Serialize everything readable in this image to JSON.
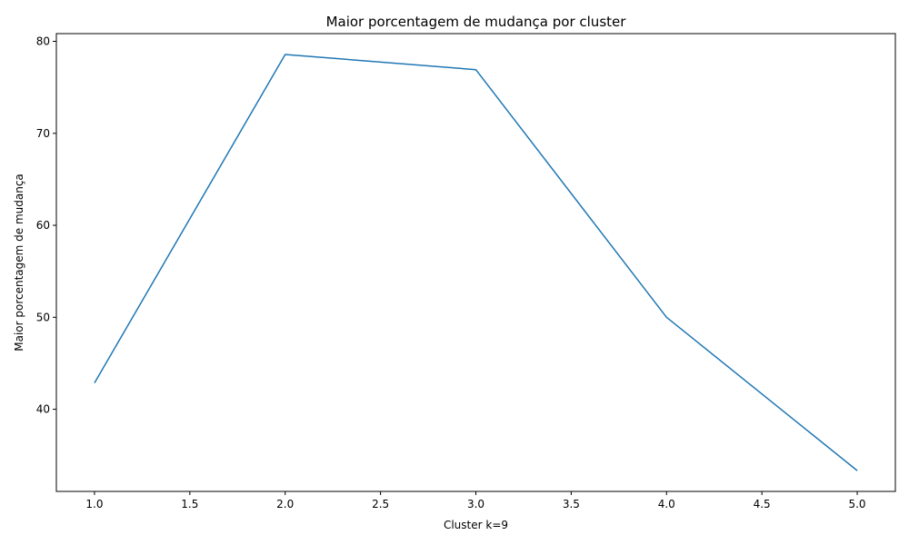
{
  "chart_data": {
    "type": "line",
    "title": "Maior porcentagem de mudança por cluster",
    "xlabel": "Cluster k=9",
    "ylabel": "Maior porcentagem de mudança",
    "x": [
      1,
      2,
      3,
      4,
      5
    ],
    "series": [
      {
        "values": [
          42.86,
          78.57,
          76.92,
          50.0,
          33.33
        ]
      }
    ],
    "xlim": [
      0.8,
      5.2
    ],
    "ylim": [
      31.07,
      80.84
    ],
    "xticks": [
      "1.0",
      "1.5",
      "2.0",
      "2.5",
      "3.0",
      "3.5",
      "4.0",
      "4.5",
      "5.0"
    ],
    "yticks": [
      "40",
      "50",
      "60",
      "70",
      "80"
    ],
    "grid": false,
    "line_color": "#1f77b4"
  }
}
